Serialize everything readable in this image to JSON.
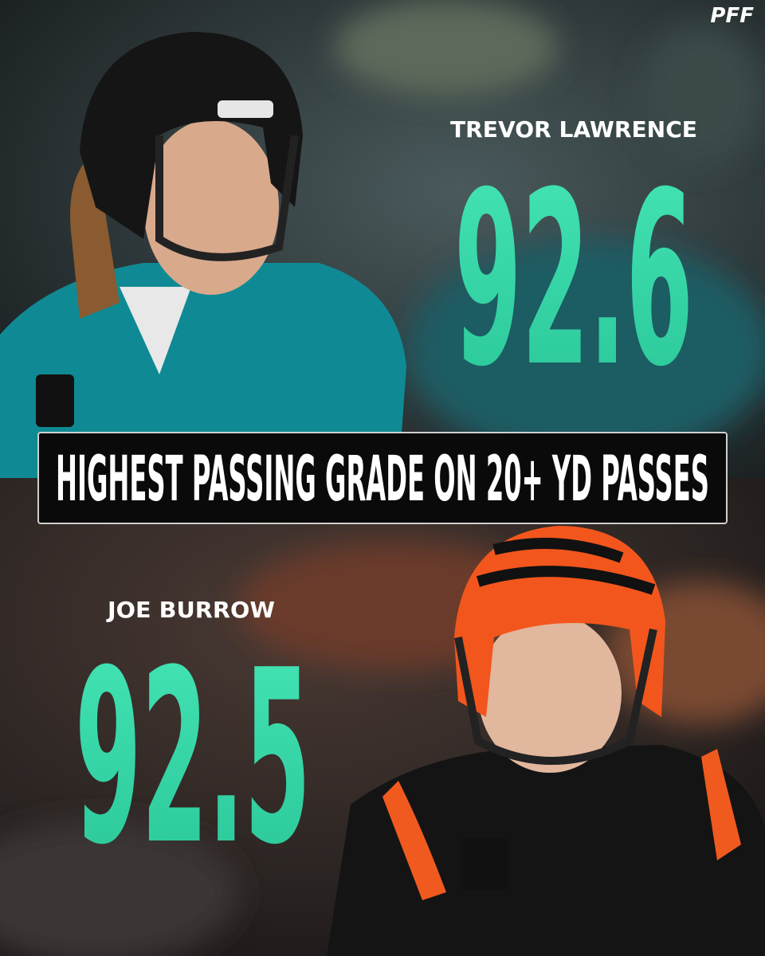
{
  "logo": "PFF",
  "banner": {
    "title": "HIGHEST PASSING GRADE ON 20+ YD PASSES"
  },
  "players": [
    {
      "name": "TREVOR LAWRENCE",
      "grade": 92.6
    },
    {
      "name": "JOE BURROW",
      "grade": 92.5
    }
  ]
}
